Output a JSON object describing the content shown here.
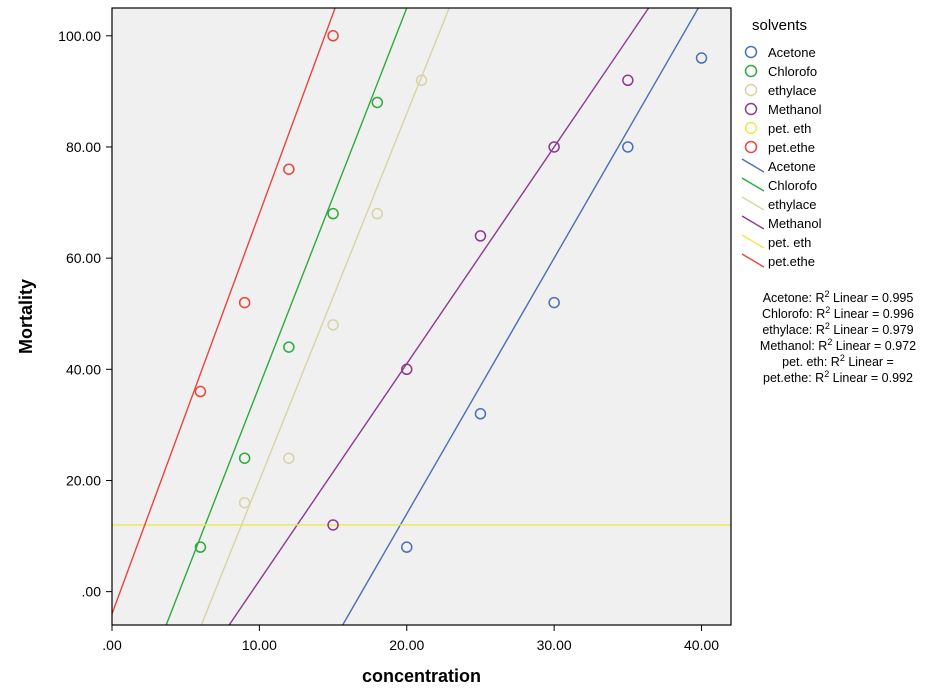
{
  "chart_data": {
    "type": "scatter",
    "xlabel": "concentration",
    "ylabel": "Mortality",
    "xlim": [
      0,
      42
    ],
    "ylim": [
      -6,
      105
    ],
    "x_ticks": [
      0,
      10,
      20,
      30,
      40
    ],
    "x_tick_labels": [
      ".00",
      "10.00",
      "20.00",
      "30.00",
      "40.00"
    ],
    "y_ticks": [
      0,
      20,
      40,
      60,
      80,
      100
    ],
    "y_tick_labels": [
      ".00",
      "20.00",
      "40.00",
      "60.00",
      "80.00",
      "100.00"
    ],
    "grid": false,
    "plot_background": "#f0f0f0",
    "legend_title": "solvents",
    "legend_position": "right",
    "series": [
      {
        "name": "Acetone",
        "color": "#4a6fb5",
        "points": [
          [
            20,
            8
          ],
          [
            25,
            32
          ],
          [
            30,
            52
          ],
          [
            35,
            80
          ],
          [
            40,
            96
          ]
        ],
        "fit": {
          "slope": 4.6,
          "intercept": -78,
          "r2_label": "Acetone: R² Linear = 0.995"
        }
      },
      {
        "name": "Chlorofo",
        "color": "#2eaa3c",
        "points": [
          [
            6,
            8
          ],
          [
            9,
            24
          ],
          [
            12,
            44
          ],
          [
            15,
            68
          ],
          [
            18,
            88
          ]
        ],
        "fit": {
          "slope": 6.8,
          "intercept": -31,
          "r2_label": "Chlorofo: R² Linear = 0.996"
        }
      },
      {
        "name": "ethylace",
        "color": "#d7d3a4",
        "points": [
          [
            9,
            16
          ],
          [
            12,
            24
          ],
          [
            15,
            48
          ],
          [
            18,
            68
          ],
          [
            21,
            92
          ]
        ],
        "fit": {
          "slope": 6.6,
          "intercept": -46,
          "r2_label": "ethylace: R² Linear = 0.979"
        }
      },
      {
        "name": "Methanol",
        "color": "#8b3a8f",
        "points": [
          [
            15,
            12
          ],
          [
            20,
            40
          ],
          [
            25,
            64
          ],
          [
            30,
            80
          ],
          [
            35,
            92
          ]
        ],
        "fit": {
          "slope": 3.9,
          "intercept": -37,
          "r2_label": "Methanol: R² Linear = 0.972"
        }
      },
      {
        "name": "pet. eth",
        "color": "#ece84e",
        "points": [],
        "fit": {
          "slope": 0,
          "intercept": 12,
          "r2_label": "pet. eth: R² Linear ="
        }
      },
      {
        "name": "pet.ethe",
        "color": "#e8453c",
        "points": [
          [
            6,
            36
          ],
          [
            9,
            52
          ],
          [
            12,
            76
          ],
          [
            15,
            100
          ]
        ],
        "fit": {
          "slope": 7.2,
          "intercept": -4,
          "r2_label": "pet.ethe: R² Linear = 0.992"
        }
      }
    ]
  }
}
